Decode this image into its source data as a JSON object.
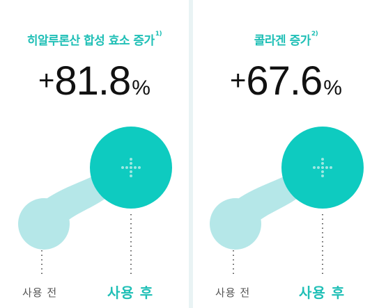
{
  "cards": [
    {
      "title": "히알루론산 합성 효소 증가",
      "footnote": "1)",
      "sign": "+",
      "value": "81.8",
      "unit": "%",
      "before_label": "사용 전",
      "after_label": "사용 후",
      "accent_color": "#0ecbc0"
    },
    {
      "title": "콜라겐 증가",
      "footnote": "2)",
      "sign": "+",
      "value": "67.6",
      "unit": "%",
      "before_label": "사용 전",
      "after_label": "사용 후",
      "accent_color": "#0ecbc0"
    }
  ],
  "icons": {
    "after_circle_icon": "plus-dots-icon"
  }
}
